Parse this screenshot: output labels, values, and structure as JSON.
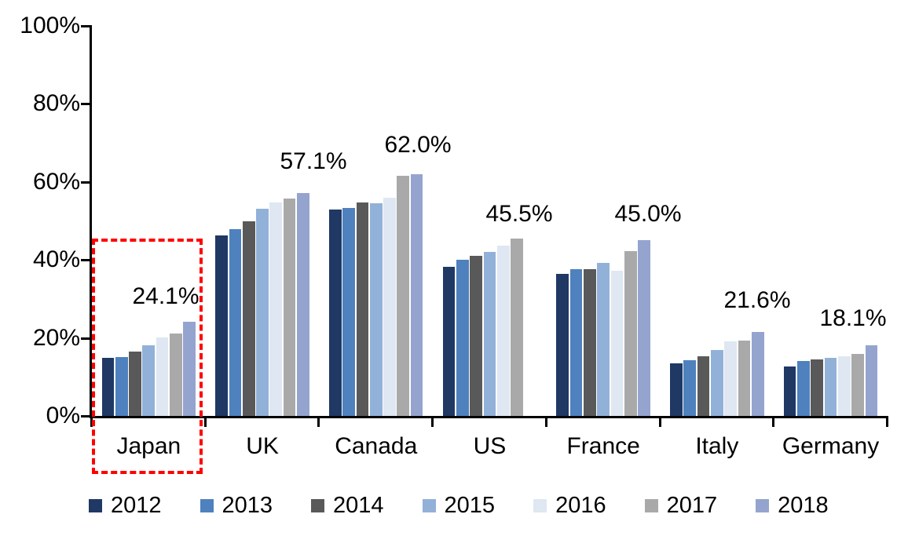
{
  "chart_data": {
    "type": "bar",
    "title": "",
    "xlabel": "",
    "ylabel": "",
    "categories": [
      "Japan",
      "UK",
      "Canada",
      "US",
      "France",
      "Italy",
      "Germany"
    ],
    "series": [
      {
        "name": "2012",
        "color": "#1F3864",
        "values": [
          14.8,
          46.3,
          53.0,
          38.2,
          36.5,
          13.4,
          12.6
        ]
      },
      {
        "name": "2013",
        "color": "#4E81BE",
        "values": [
          15.0,
          47.8,
          53.3,
          40.0,
          37.7,
          14.2,
          14.0
        ]
      },
      {
        "name": "2014",
        "color": "#595959",
        "values": [
          16.6,
          49.9,
          54.8,
          41.1,
          37.7,
          15.4,
          14.4
        ]
      },
      {
        "name": "2015",
        "color": "#92B1D8",
        "values": [
          18.2,
          53.2,
          54.6,
          42.1,
          39.3,
          16.9,
          14.8
        ]
      },
      {
        "name": "2016",
        "color": "#DEE7F2",
        "values": [
          20.2,
          54.7,
          56.0,
          43.6,
          37.3,
          19.1,
          15.3
        ]
      },
      {
        "name": "2017",
        "color": "#A9A9A9",
        "values": [
          21.1,
          55.8,
          61.5,
          45.5,
          42.2,
          19.3,
          16.0
        ]
      },
      {
        "name": "2018",
        "color": "#95A4CF",
        "values": [
          24.1,
          57.1,
          62.0,
          null,
          45.0,
          21.6,
          18.1
        ]
      }
    ],
    "annotations": [
      {
        "category": "Japan",
        "text": "24.1%"
      },
      {
        "category": "UK",
        "text": "57.1%"
      },
      {
        "category": "Canada",
        "text": "62.0%"
      },
      {
        "category": "US",
        "text": "45.5%"
      },
      {
        "category": "France",
        "text": "45.0%"
      },
      {
        "category": "Italy",
        "text": "21.6%"
      },
      {
        "category": "Germany",
        "text": "18.1%"
      }
    ],
    "y_axis": {
      "min": 0,
      "max": 100,
      "tick_step": 20,
      "tick_labels": [
        "100%",
        "80%",
        "60%",
        "40%",
        "20%",
        "0%"
      ],
      "grid": false
    },
    "legend": {
      "position": "bottom",
      "labels": [
        "2012",
        "2013",
        "2014",
        "2015",
        "2016",
        "2017",
        "2018"
      ]
    },
    "highlight": {
      "shape": "dashed-box",
      "color": "#FF0000",
      "category": "Japan"
    }
  }
}
